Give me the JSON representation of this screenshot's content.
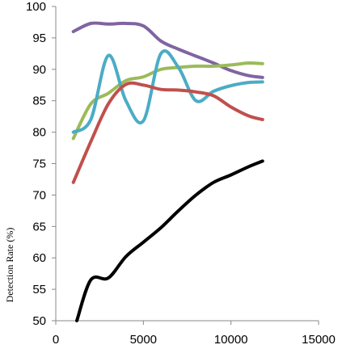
{
  "chart_data": {
    "type": "line",
    "title": "",
    "xlabel": "",
    "ylabel": "Detection Rate (%)",
    "xlim": [
      0,
      15000
    ],
    "ylim": [
      50,
      100
    ],
    "xticks": [
      0,
      5000,
      10000,
      15000
    ],
    "yticks": [
      50,
      55,
      60,
      65,
      70,
      75,
      80,
      85,
      90,
      95,
      100
    ],
    "grid": false,
    "legend": "none",
    "series": [
      {
        "color": "#8064a2",
        "x": [
          1000,
          2000,
          3000,
          4000,
          5000,
          6000,
          7000,
          8000,
          9000,
          10000,
          11000,
          11800
        ],
        "y": [
          96.0,
          97.3,
          97.2,
          97.3,
          96.9,
          94.5,
          93.2,
          92.1,
          91.0,
          89.8,
          89.0,
          88.7
        ]
      },
      {
        "color": "#9bbb59",
        "x": [
          1000,
          2000,
          3000,
          4000,
          5000,
          6000,
          7000,
          8000,
          9000,
          10000,
          11000,
          11800
        ],
        "y": [
          79.0,
          84.5,
          86.2,
          88.2,
          88.8,
          90.0,
          90.3,
          90.5,
          90.5,
          90.7,
          91.0,
          90.9
        ]
      },
      {
        "color": "#4bacc6",
        "x": [
          1000,
          2000,
          3000,
          4000,
          5000,
          6000,
          7000,
          8000,
          9000,
          10000,
          11000,
          11800
        ],
        "y": [
          80.0,
          82.0,
          92.2,
          85.0,
          81.8,
          92.5,
          90.3,
          85.0,
          86.5,
          87.4,
          87.9,
          88.0
        ]
      },
      {
        "color": "#c0504d",
        "x": [
          1000,
          2000,
          3000,
          4000,
          5000,
          6000,
          7000,
          8000,
          9000,
          10000,
          11000,
          11800
        ],
        "y": [
          72.0,
          78.5,
          84.5,
          87.6,
          87.5,
          86.8,
          86.7,
          86.4,
          85.8,
          84.0,
          82.6,
          82.0
        ]
      },
      {
        "color": "#000000",
        "x": [
          1200,
          2000,
          3000,
          4000,
          5000,
          6000,
          7000,
          8000,
          9000,
          10000,
          11000,
          11800
        ],
        "y": [
          50.0,
          56.5,
          56.8,
          60.2,
          62.5,
          64.8,
          67.5,
          70.0,
          72.0,
          73.2,
          74.5,
          75.4
        ]
      }
    ]
  }
}
